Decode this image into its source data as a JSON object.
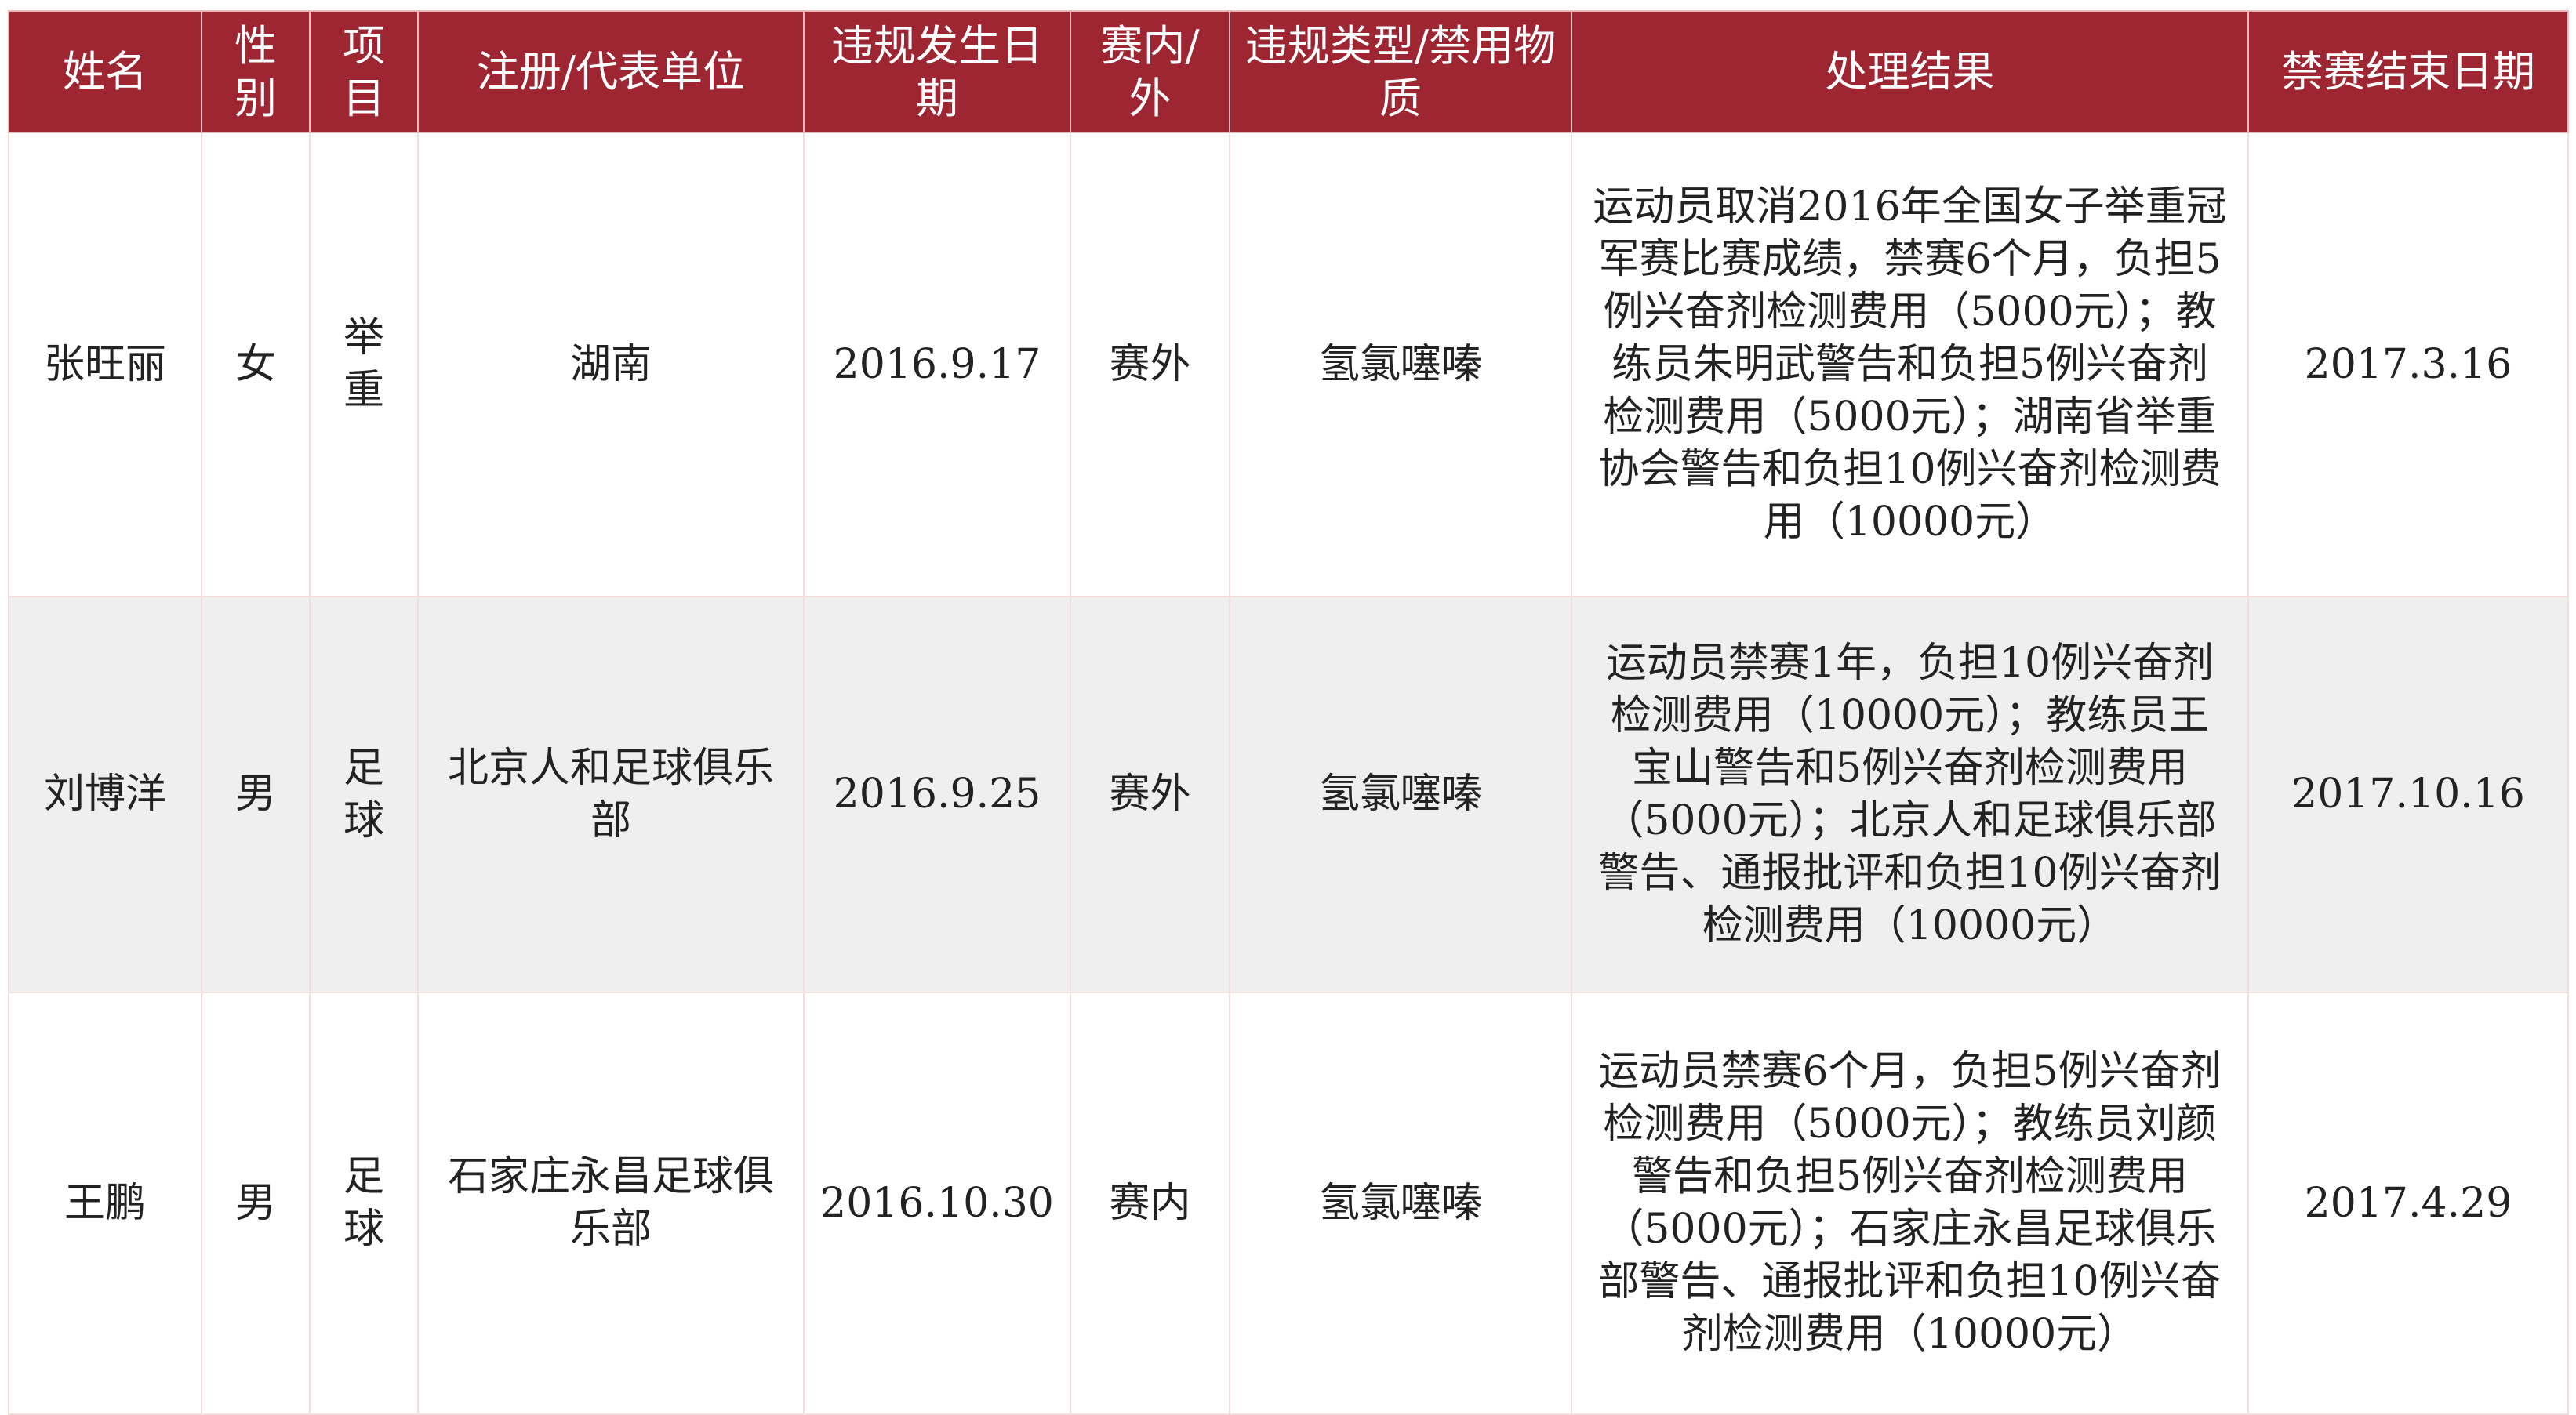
{
  "table": {
    "headers": [
      "姓名",
      "性别",
      "项目",
      "注册/代表单位",
      "违规发生日期",
      "赛内/外",
      "违规类型/禁用物质",
      "处理结果",
      "禁赛结束日期"
    ],
    "rows": [
      [
        "张旺丽",
        "女",
        "举重",
        "湖南",
        "2016.9.17",
        "赛外",
        "氢氯噻嗪",
        "运动员取消2016年全国女子举重冠军赛比赛成绩，禁赛6个月，负担5例兴奋剂检测费用（5000元）；教练员朱明武警告和负担5例兴奋剂检测费用（5000元）；湖南省举重协会警告和负担10例兴奋剂检测费用（10000元）",
        "2017.3.16"
      ],
      [
        "刘博洋",
        "男",
        "足球",
        "北京人和足球俱乐部",
        "2016.9.25",
        "赛外",
        "氢氯噻嗪",
        "运动员禁赛1年，负担10例兴奋剂检测费用（10000元）；教练员王宝山警告和5例兴奋剂检测费用（5000元）；北京人和足球俱乐部警告、通报批评和负担10例兴奋剂检测费用（10000元）",
        "2017.10.16"
      ],
      [
        "王鹏",
        "男",
        "足球",
        "石家庄永昌足球俱乐部",
        "2016.10.30",
        "赛内",
        "氢氯噻嗪",
        "运动员禁赛6个月，负担5例兴奋剂检测费用（5000元）；教练员刘颜警告和负担5例兴奋剂检测费用（5000元）；石家庄永昌足球俱乐部警告、通报批评和负担10例兴奋剂检测费用（10000元）",
        "2017.4.29"
      ]
    ]
  },
  "colors": {
    "header_bg": "#9e2532",
    "striped_row": "#efefef"
  }
}
